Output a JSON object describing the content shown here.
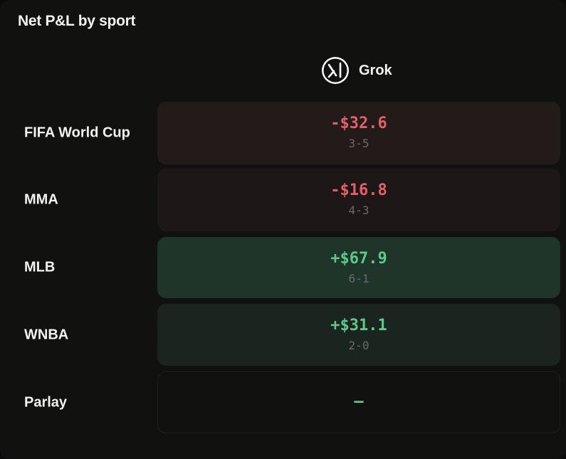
{
  "header": {
    "title": "Net P&L by sport"
  },
  "table": {
    "column": "Grok",
    "rows": [
      {
        "sport": "FIFA World Cup",
        "pnl": "-$32.6",
        "record": "3-5"
      },
      {
        "sport": "MMA",
        "pnl": "-$16.8",
        "record": "4-3"
      },
      {
        "sport": "MLB",
        "pnl": "+$67.9",
        "record": "6-1"
      },
      {
        "sport": "WNBA",
        "pnl": "+$31.1",
        "record": "2-0"
      },
      {
        "sport": "Parlay",
        "pnl": "–"
      }
    ]
  }
}
